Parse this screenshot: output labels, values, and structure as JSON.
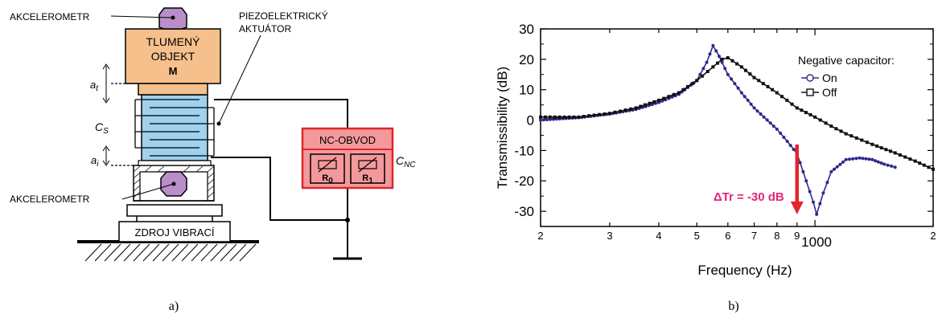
{
  "diagram": {
    "caption": "a)",
    "accelerometer_top": "AKCELEROMETR",
    "accelerometer_bottom": "AKCELEROMETR",
    "mass_line1": "TLUMENÝ",
    "mass_line2": "OBJEKT",
    "mass_symbol": "M",
    "actuator_line1": "PIEZOELEKTRICKÝ",
    "actuator_line2": "AKTUÁTOR",
    "vibration_source": "ZDROJ VIBRACÍ",
    "nc_circuit": "NC-OBVOD",
    "r0": "R0",
    "r1": "R1",
    "cnc": "CNC",
    "cs": "CS",
    "at": "at",
    "ai": "ai",
    "colors": {
      "mass": "#f5c08c",
      "accelerometer": "#b98ec9",
      "actuator": "#9fd2ee",
      "nc_fill": "#f4999b",
      "nc_stroke": "#e0262b"
    }
  },
  "chart_data": {
    "caption": "b)",
    "type": "line",
    "xlabel": "Frequency (Hz)",
    "ylabel": "Transmissibility (dB)",
    "xscale": "log",
    "xlim": [
      200,
      2000
    ],
    "ylim": [
      -35,
      30
    ],
    "yticks": [
      -30,
      -20,
      -10,
      0,
      10,
      20,
      30
    ],
    "xtick_labels": [
      {
        "value": 200,
        "label": "2"
      },
      {
        "value": 300,
        "label": "3"
      },
      {
        "value": 400,
        "label": "4"
      },
      {
        "value": 500,
        "label": "5"
      },
      {
        "value": 600,
        "label": "6"
      },
      {
        "value": 700,
        "label": "7"
      },
      {
        "value": 800,
        "label": "8"
      },
      {
        "value": 900,
        "label": "9"
      },
      {
        "value": 1000,
        "label": "1000"
      },
      {
        "value": 2000,
        "label": "2"
      }
    ],
    "legend": {
      "title": "Negative capacitor:",
      "position": "top-right"
    },
    "annotation": {
      "text": "ΔTr = -30 dB",
      "x": 900,
      "y_from": -8,
      "y_to": -31,
      "color": "#e0262b"
    },
    "series": [
      {
        "name": "On",
        "color": "#2e2a8a",
        "marker": "circle",
        "points": [
          [
            200,
            0
          ],
          [
            250,
            0.8
          ],
          [
            300,
            2
          ],
          [
            350,
            3.5
          ],
          [
            400,
            5.8
          ],
          [
            450,
            8.5
          ],
          [
            500,
            13
          ],
          [
            530,
            19
          ],
          [
            550,
            24.5
          ],
          [
            570,
            21
          ],
          [
            600,
            15
          ],
          [
            650,
            9
          ],
          [
            700,
            4
          ],
          [
            800,
            -3
          ],
          [
            850,
            -7
          ],
          [
            900,
            -11
          ],
          [
            950,
            -20
          ],
          [
            990,
            -27
          ],
          [
            1010,
            -31
          ],
          [
            1050,
            -24
          ],
          [
            1100,
            -17
          ],
          [
            1200,
            -13
          ],
          [
            1300,
            -12.5
          ],
          [
            1400,
            -13
          ],
          [
            1500,
            -14.5
          ],
          [
            1600,
            -15.5
          ]
        ]
      },
      {
        "name": "Off",
        "color": "#111111",
        "marker": "square",
        "points": [
          [
            200,
            1
          ],
          [
            250,
            1
          ],
          [
            300,
            2.2
          ],
          [
            350,
            4
          ],
          [
            400,
            6.5
          ],
          [
            450,
            9
          ],
          [
            500,
            13
          ],
          [
            550,
            17.5
          ],
          [
            580,
            20
          ],
          [
            600,
            20.5
          ],
          [
            650,
            17.5
          ],
          [
            700,
            14
          ],
          [
            800,
            9
          ],
          [
            900,
            4
          ],
          [
            1000,
            1
          ],
          [
            1100,
            -2
          ],
          [
            1200,
            -4.5
          ],
          [
            1400,
            -8
          ],
          [
            1600,
            -10.8
          ],
          [
            1800,
            -13.5
          ],
          [
            2000,
            -16.2
          ]
        ]
      }
    ]
  }
}
